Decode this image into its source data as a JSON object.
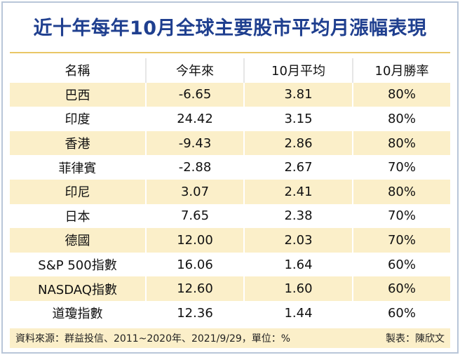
{
  "header": {
    "title": "近十年每年10月全球主要股市平均月漲幅表現"
  },
  "table": {
    "columns": [
      "名稱",
      "今年來",
      "10月平均",
      "10月勝率"
    ],
    "rows": [
      [
        "巴西",
        "-6.65",
        "3.81",
        "80%"
      ],
      [
        "印度",
        "24.42",
        "3.15",
        "80%"
      ],
      [
        "香港",
        "-9.43",
        "2.86",
        "80%"
      ],
      [
        "菲律賓",
        "-2.88",
        "2.67",
        "70%"
      ],
      [
        "印尼",
        "3.07",
        "2.41",
        "80%"
      ],
      [
        "日本",
        "7.65",
        "2.38",
        "70%"
      ],
      [
        "德國",
        "12.00",
        "2.03",
        "70%"
      ],
      [
        "S&P 500指數",
        "16.06",
        "1.64",
        "60%"
      ],
      [
        "NASDAQ指數",
        "12.60",
        "1.60",
        "60%"
      ],
      [
        "道瓊指數",
        "12.36",
        "1.44",
        "60%"
      ]
    ]
  },
  "footer": {
    "source": "資料來源：群益投信、2011~2020年、2021/9/29，單位：%",
    "credit": "製表：陳欣文"
  }
}
